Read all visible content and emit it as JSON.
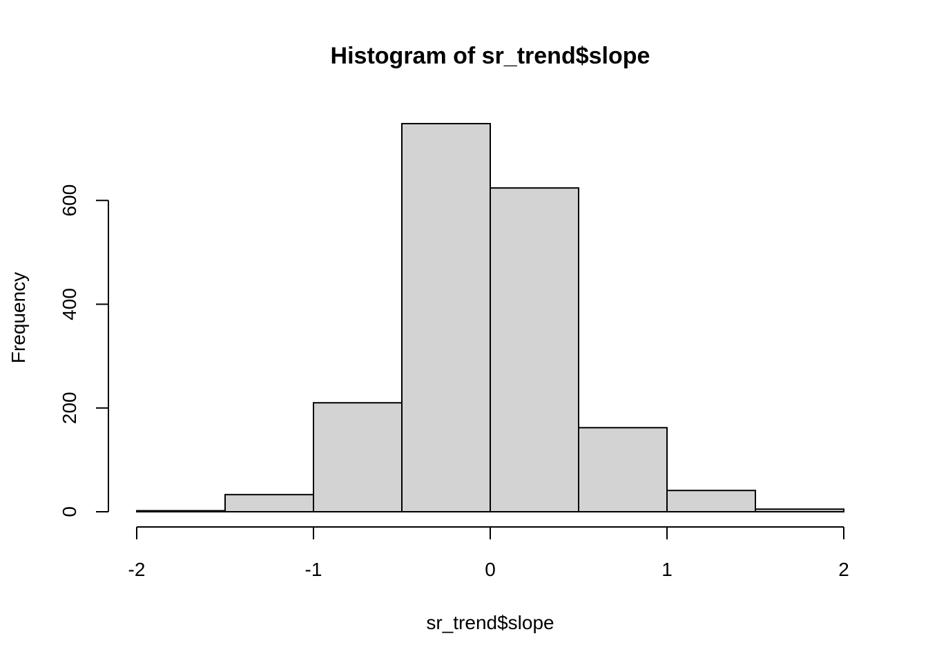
{
  "chart_data": {
    "type": "bar",
    "title": "Histogram of sr_trend$slope",
    "xlabel": "sr_trend$slope",
    "ylabel": "Frequency",
    "bin_edges": [
      -2,
      -1.5,
      -1,
      -0.5,
      0,
      0.5,
      1,
      1.5,
      2
    ],
    "values": [
      2,
      33,
      210,
      748,
      624,
      162,
      41,
      5
    ],
    "x_ticks": [
      -2,
      -1,
      0,
      1,
      2
    ],
    "y_ticks": [
      0,
      200,
      400,
      600
    ],
    "xlim": [
      -2,
      2
    ],
    "ylim": [
      0,
      748
    ],
    "bar_color": "#d3d3d3",
    "grid": false,
    "legend": "none"
  }
}
